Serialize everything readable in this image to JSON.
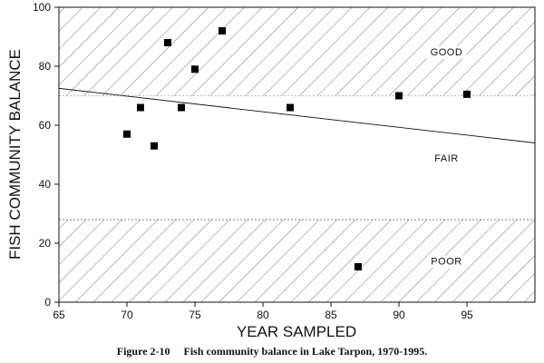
{
  "chart_data": {
    "type": "scatter",
    "xlabel": "YEAR SAMPLED",
    "ylabel": "FISH COMMUNITY BALANCE",
    "xlim": [
      65,
      100
    ],
    "ylim": [
      0,
      100
    ],
    "xticks": [
      65,
      70,
      75,
      80,
      85,
      90,
      95
    ],
    "yticks": [
      0,
      20,
      40,
      60,
      80,
      100
    ],
    "grid": false,
    "bands": [
      {
        "label": "GOOD",
        "from": 70,
        "to": 100,
        "hatched": true
      },
      {
        "label": "FAIR",
        "from": 28,
        "to": 70,
        "hatched": false
      },
      {
        "label": "POOR",
        "from": 0,
        "to": 28,
        "hatched": true
      }
    ],
    "points": [
      {
        "x": 70,
        "y": 57
      },
      {
        "x": 71,
        "y": 66
      },
      {
        "x": 72,
        "y": 53
      },
      {
        "x": 73,
        "y": 88
      },
      {
        "x": 74,
        "y": 66
      },
      {
        "x": 75,
        "y": 79
      },
      {
        "x": 77,
        "y": 92
      },
      {
        "x": 82,
        "y": 66
      },
      {
        "x": 87,
        "y": 12
      },
      {
        "x": 90,
        "y": 70
      },
      {
        "x": 95,
        "y": 70.5
      }
    ],
    "trendline": {
      "x": [
        65,
        100
      ],
      "y": [
        72.5,
        54
      ]
    }
  },
  "caption": "Figure 2-10     Fish community balance in Lake Tarpon, 1970-1995."
}
